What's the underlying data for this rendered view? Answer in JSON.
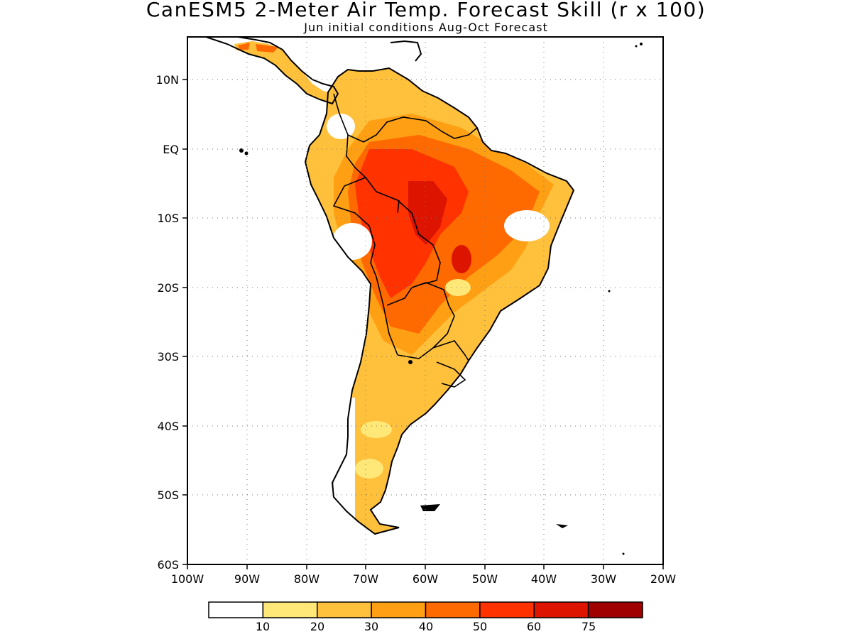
{
  "title": "CanESM5 2-Meter Air Temp. Forecast Skill (r x 100)",
  "subtitle": "Jun initial conditions  Aug-Oct Forecast",
  "axes": {
    "lon_ticks": [
      "100W",
      "90W",
      "80W",
      "70W",
      "60W",
      "50W",
      "40W",
      "30W",
      "20W"
    ],
    "lat_ticks": [
      "10N",
      "EQ",
      "10S",
      "20S",
      "30S",
      "40S",
      "50S",
      "60S"
    ],
    "lon_range": [
      -100,
      -20
    ],
    "lat_range": [
      -60,
      16
    ],
    "grid": true
  },
  "colorbar": {
    "labels": [
      "10",
      "20",
      "30",
      "40",
      "50",
      "60",
      "75"
    ],
    "colors": [
      "#ffffff",
      "#ffe878",
      "#ffc03c",
      "#ffa014",
      "#ff6a00",
      "#ff3200",
      "#dc1400",
      "#a00000"
    ]
  }
}
